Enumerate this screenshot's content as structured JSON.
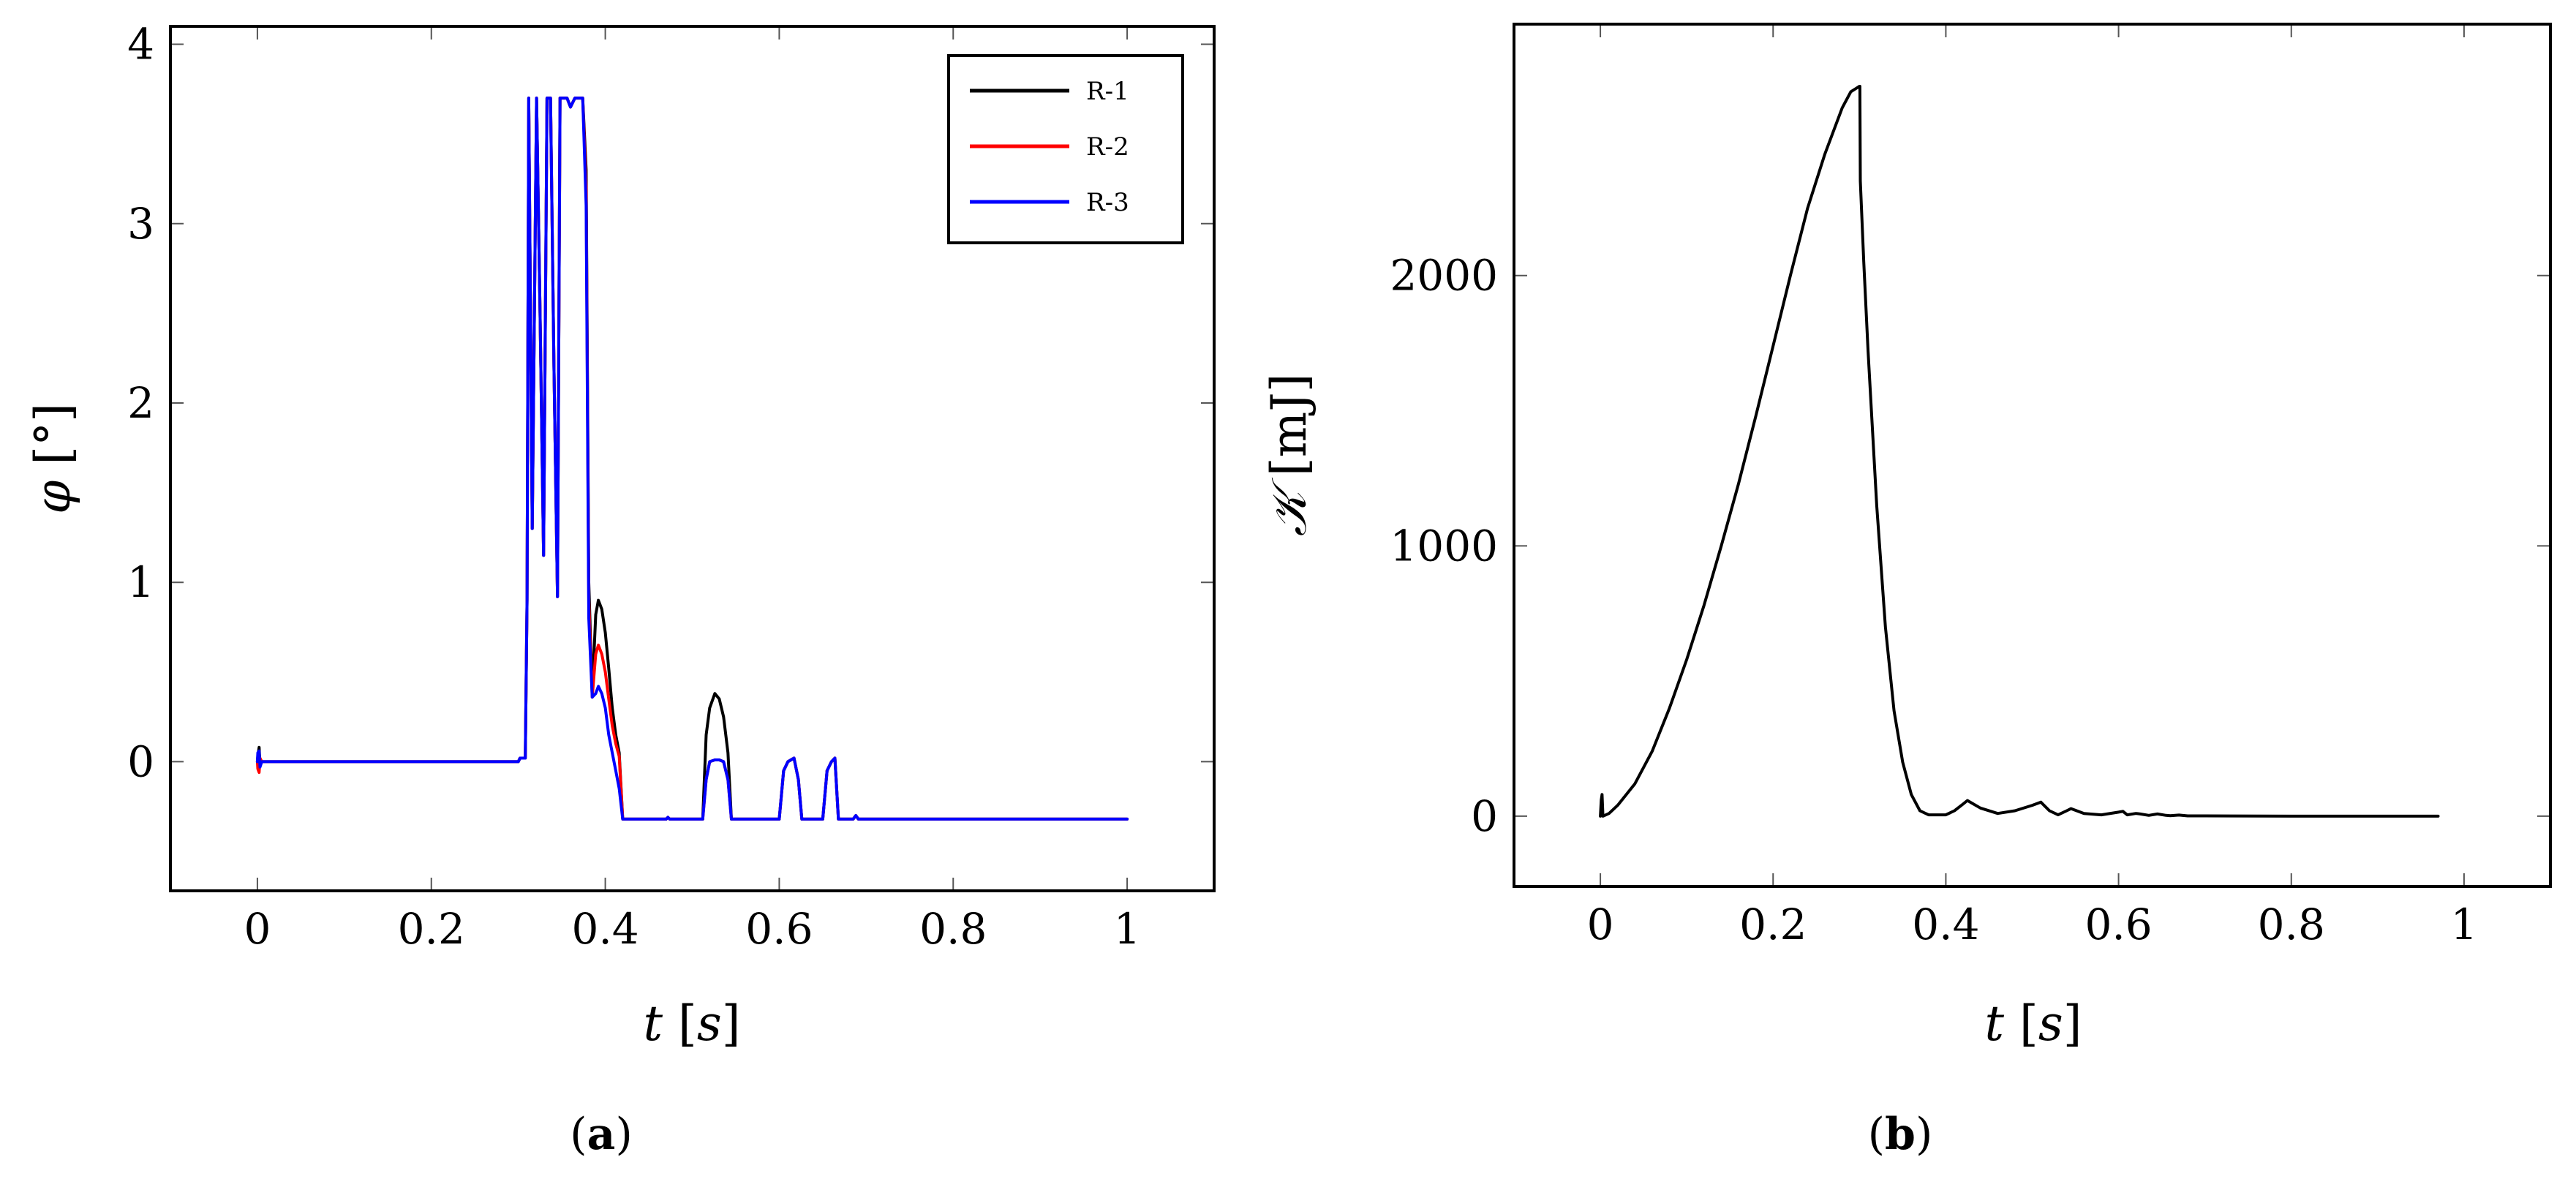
{
  "chart_data": [
    {
      "type": "line",
      "panel": "a",
      "caption_label": "a",
      "xlabel_var": "t",
      "xlabel_unit": "s",
      "ylabel_var": "φ",
      "ylabel_unit": "°",
      "xlim": [
        -0.1,
        1.1
      ],
      "ylim": [
        -0.72,
        4.1
      ],
      "xticks": [
        0,
        0.2,
        0.4,
        0.6,
        0.8,
        1
      ],
      "xtick_labels": [
        "0",
        "0.2",
        "0.4",
        "0.6",
        "0.8",
        "1"
      ],
      "yticks": [
        0,
        1,
        2,
        3,
        4
      ],
      "ytick_labels": [
        "0",
        "1",
        "2",
        "3",
        "4"
      ],
      "legend_position": "top-right",
      "series": [
        {
          "name": "R-1",
          "color": "#000000",
          "x": [
            0,
            0.0005,
            0.002,
            0.003,
            0.005,
            0.3,
            0.302,
            0.305,
            0.308,
            0.31,
            0.312,
            0.316,
            0.321,
            0.325,
            0.329,
            0.333,
            0.337,
            0.341,
            0.345,
            0.348,
            0.352,
            0.356,
            0.36,
            0.365,
            0.37,
            0.374,
            0.378,
            0.381,
            0.385,
            0.389,
            0.392,
            0.396,
            0.4,
            0.404,
            0.408,
            0.412,
            0.416,
            0.42,
            0.424,
            0.428,
            0.43,
            0.47,
            0.472,
            0.474,
            0.512,
            0.516,
            0.52,
            0.526,
            0.531,
            0.536,
            0.541,
            0.545,
            0.548,
            0.551,
            0.6,
            0.605,
            0.61,
            0.617,
            0.622,
            0.626,
            0.65,
            0.655,
            0.66,
            0.664,
            0.668,
            0.672,
            0.685,
            0.688,
            0.691,
            1.0
          ],
          "y": [
            0,
            0.03,
            0.08,
            -0.02,
            0,
            0,
            0.02,
            0.02,
            0.02,
            0.9,
            3.7,
            1.3,
            3.7,
            2.5,
            1.15,
            3.7,
            3.7,
            2.2,
            0.92,
            3.7,
            3.7,
            3.7,
            3.65,
            3.7,
            3.7,
            3.7,
            3.3,
            1.0,
            0.38,
            0.82,
            0.9,
            0.85,
            0.72,
            0.52,
            0.3,
            0.15,
            0.05,
            -0.32,
            -0.32,
            -0.32,
            -0.32,
            -0.32,
            -0.31,
            -0.32,
            -0.32,
            0.15,
            0.3,
            0.38,
            0.35,
            0.25,
            0.05,
            -0.32,
            -0.32,
            -0.32,
            -0.32,
            -0.05,
            0.0,
            0.02,
            -0.1,
            -0.32,
            -0.32,
            -0.05,
            0.0,
            0.02,
            -0.32,
            -0.32,
            -0.32,
            -0.3,
            -0.32,
            -0.32
          ]
        },
        {
          "name": "R-2",
          "color": "#ff0000",
          "x": [
            0,
            0.0005,
            0.002,
            0.003,
            0.005,
            0.3,
            0.302,
            0.305,
            0.308,
            0.31,
            0.312,
            0.316,
            0.321,
            0.325,
            0.329,
            0.333,
            0.337,
            0.341,
            0.345,
            0.348,
            0.352,
            0.356,
            0.36,
            0.365,
            0.37,
            0.374,
            0.378,
            0.381,
            0.385,
            0.389,
            0.392,
            0.396,
            0.4,
            0.404,
            0.408,
            0.412,
            0.416,
            0.42,
            0.424,
            0.428,
            0.43,
            0.47,
            0.472,
            0.474,
            0.512,
            0.516,
            0.52,
            0.526,
            0.531,
            0.536,
            0.541,
            0.545,
            0.548,
            0.551,
            0.6,
            0.605,
            0.61,
            0.617,
            0.622,
            0.626,
            0.65,
            0.655,
            0.66,
            0.664,
            0.668,
            0.672,
            0.685,
            0.688,
            0.691,
            1.0
          ],
          "y": [
            0,
            -0.04,
            -0.06,
            0.02,
            0,
            0,
            0.02,
            0.02,
            0.02,
            0.9,
            3.7,
            1.3,
            3.7,
            2.5,
            1.15,
            3.7,
            3.7,
            2.2,
            0.92,
            3.7,
            3.7,
            3.7,
            3.65,
            3.7,
            3.7,
            3.7,
            3.2,
            0.9,
            0.36,
            0.6,
            0.65,
            0.6,
            0.5,
            0.35,
            0.2,
            0.1,
            0.03,
            -0.32,
            -0.32,
            -0.32,
            -0.32,
            -0.32,
            -0.31,
            -0.32,
            -0.32,
            -0.1,
            0.0,
            0.01,
            0.01,
            0.0,
            -0.1,
            -0.32,
            -0.32,
            -0.32,
            -0.32,
            -0.05,
            0.0,
            0.02,
            -0.1,
            -0.32,
            -0.32,
            -0.05,
            0.0,
            0.02,
            -0.32,
            -0.32,
            -0.32,
            -0.3,
            -0.32,
            -0.32
          ]
        },
        {
          "name": "R-3",
          "color": "#0000ff",
          "x": [
            0,
            0.0005,
            0.002,
            0.003,
            0.005,
            0.3,
            0.302,
            0.305,
            0.308,
            0.31,
            0.312,
            0.316,
            0.321,
            0.325,
            0.329,
            0.333,
            0.337,
            0.341,
            0.345,
            0.348,
            0.352,
            0.356,
            0.36,
            0.365,
            0.37,
            0.374,
            0.378,
            0.381,
            0.385,
            0.389,
            0.392,
            0.396,
            0.4,
            0.404,
            0.408,
            0.412,
            0.416,
            0.42,
            0.424,
            0.428,
            0.43,
            0.47,
            0.472,
            0.474,
            0.512,
            0.516,
            0.52,
            0.526,
            0.531,
            0.536,
            0.541,
            0.545,
            0.548,
            0.551,
            0.6,
            0.605,
            0.61,
            0.617,
            0.622,
            0.626,
            0.65,
            0.655,
            0.66,
            0.664,
            0.668,
            0.672,
            0.685,
            0.688,
            0.691,
            1.0
          ],
          "y": [
            0,
            0.05,
            0.06,
            -0.03,
            0,
            0,
            0.02,
            0.02,
            0.02,
            0.9,
            3.7,
            1.3,
            3.7,
            2.5,
            1.15,
            3.7,
            3.7,
            2.2,
            0.92,
            3.7,
            3.7,
            3.7,
            3.65,
            3.7,
            3.7,
            3.7,
            3.1,
            0.8,
            0.36,
            0.38,
            0.42,
            0.38,
            0.3,
            0.15,
            0.05,
            -0.05,
            -0.15,
            -0.32,
            -0.32,
            -0.32,
            -0.32,
            -0.32,
            -0.31,
            -0.32,
            -0.32,
            -0.1,
            0.0,
            0.01,
            0.01,
            0.0,
            -0.1,
            -0.32,
            -0.32,
            -0.32,
            -0.32,
            -0.05,
            0.0,
            0.02,
            -0.1,
            -0.32,
            -0.32,
            -0.05,
            0.0,
            0.02,
            -0.32,
            -0.32,
            -0.32,
            -0.3,
            -0.32,
            -0.32
          ]
        }
      ]
    },
    {
      "type": "line",
      "panel": "b",
      "caption_label": "b",
      "xlabel_var": "t",
      "xlabel_unit": "s",
      "ylabel_var": "𝒦",
      "ylabel_unit": "mJ",
      "xlim": [
        -0.1,
        1.1
      ],
      "ylim": [
        -260,
        2930
      ],
      "xticks": [
        0,
        0.2,
        0.4,
        0.6,
        0.8,
        1
      ],
      "xtick_labels": [
        "0",
        "0.2",
        "0.4",
        "0.6",
        "0.8",
        "1"
      ],
      "yticks": [
        0,
        1000,
        2000
      ],
      "ytick_labels": [
        "0",
        "1000",
        "2000"
      ],
      "series": [
        {
          "name": "K",
          "color": "#000000",
          "x": [
            0,
            0.001,
            0.002,
            0.003,
            0.01,
            0.02,
            0.04,
            0.06,
            0.08,
            0.1,
            0.12,
            0.14,
            0.16,
            0.18,
            0.2,
            0.22,
            0.24,
            0.26,
            0.28,
            0.29,
            0.3,
            0.3005,
            0.301,
            0.305,
            0.31,
            0.32,
            0.33,
            0.34,
            0.35,
            0.36,
            0.37,
            0.38,
            0.39,
            0.4,
            0.41,
            0.42,
            0.425,
            0.44,
            0.46,
            0.48,
            0.5,
            0.51,
            0.52,
            0.53,
            0.54,
            0.545,
            0.56,
            0.58,
            0.6,
            0.605,
            0.61,
            0.62,
            0.625,
            0.635,
            0.645,
            0.655,
            0.66,
            0.67,
            0.68,
            0.7,
            0.8,
            0.97
          ],
          "y": [
            0,
            60,
            80,
            0,
            10,
            40,
            120,
            240,
            400,
            580,
            780,
            1000,
            1230,
            1480,
            1740,
            2000,
            2250,
            2450,
            2620,
            2680,
            2700,
            2700,
            2350,
            2050,
            1720,
            1150,
            700,
            390,
            200,
            80,
            20,
            5,
            5,
            5,
            20,
            45,
            58,
            30,
            10,
            20,
            40,
            52,
            20,
            5,
            20,
            28,
            10,
            5,
            15,
            18,
            5,
            10,
            8,
            3,
            8,
            3,
            2,
            4,
            1,
            1,
            0,
            0
          ]
        }
      ]
    }
  ]
}
